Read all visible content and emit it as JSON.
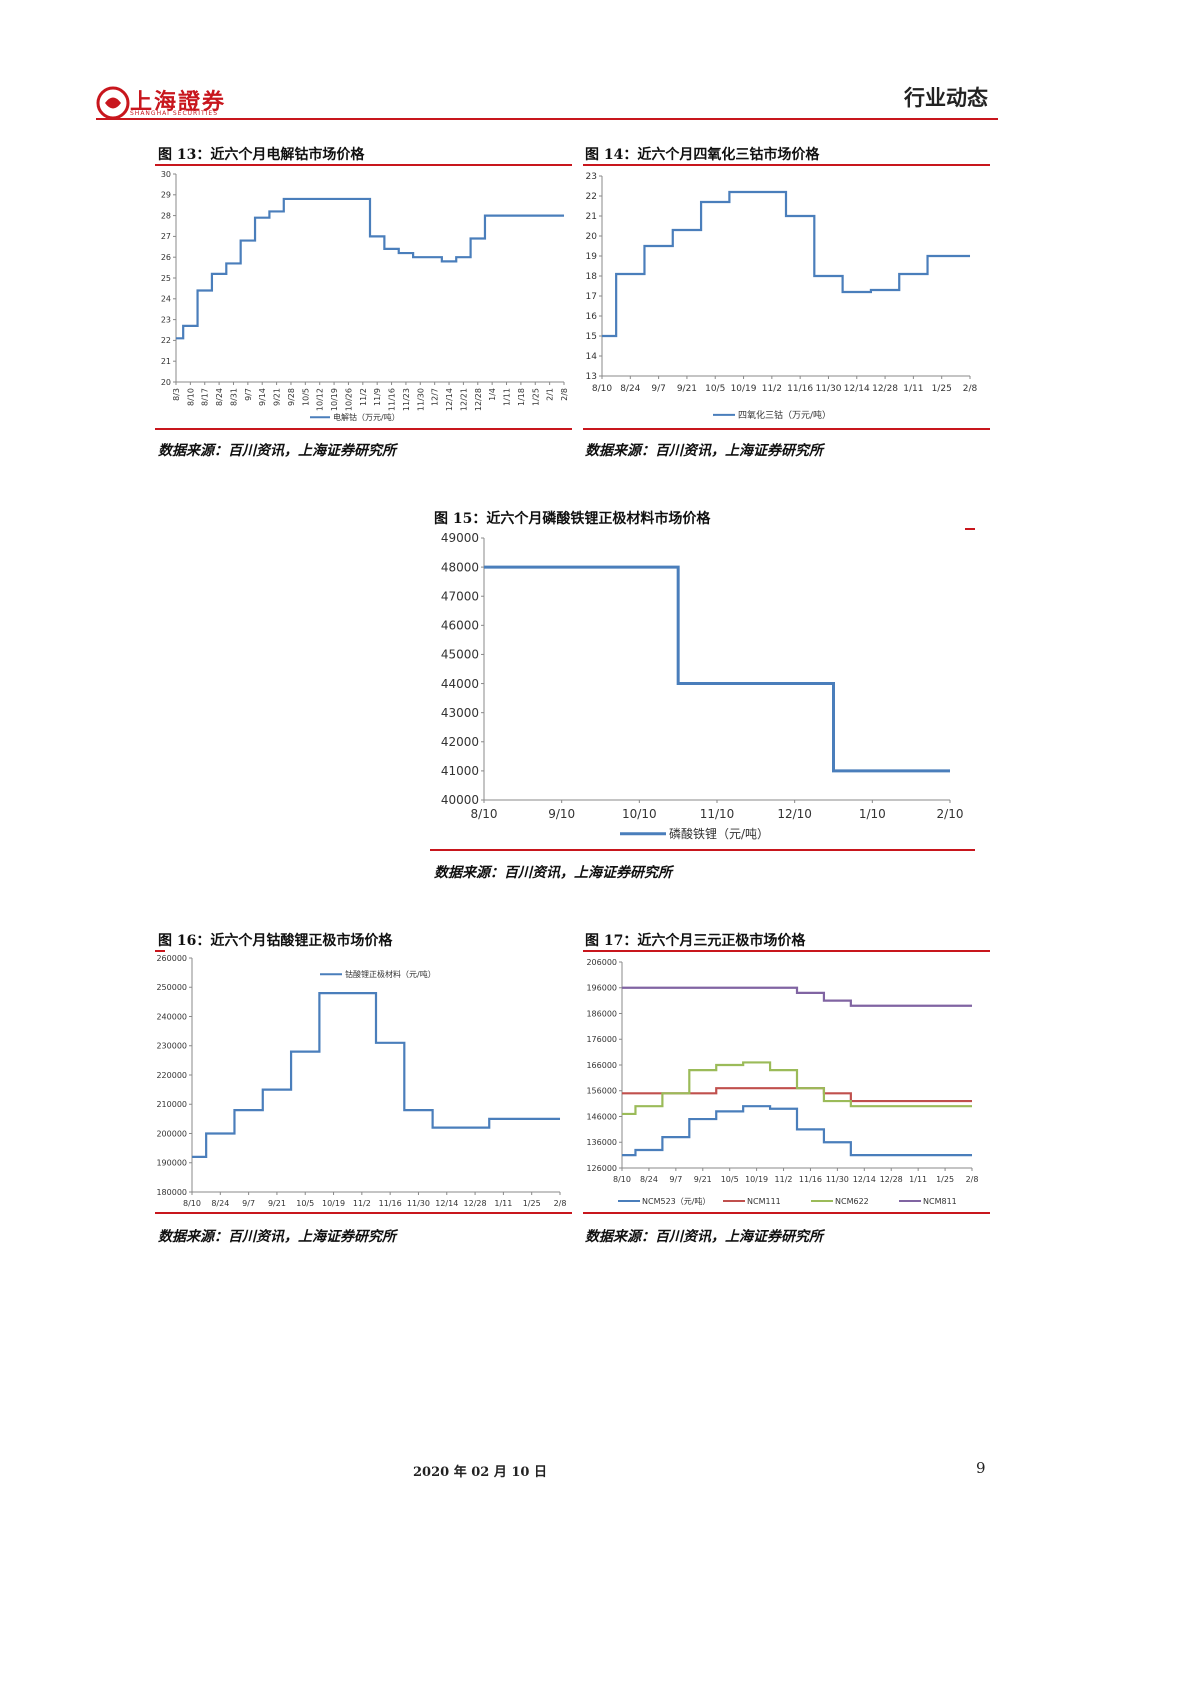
{
  "header": {
    "logo_text": "上海證券",
    "logo_sub": "SHANGHAI SECURITIES",
    "section": "行业动态"
  },
  "figures": [
    {
      "title": "图 13：近六个月电解钴市场价格",
      "source": "数据来源：百川资讯，上海证券研究所"
    },
    {
      "title": "图 14：近六个月四氧化三钴市场价格",
      "source": "数据来源：百川资讯，上海证券研究所"
    },
    {
      "title": "图 15：近六个月磷酸铁锂正极材料市场价格",
      "source": "数据来源：百川资讯，上海证券研究所"
    },
    {
      "title": "图 16：近六个月钴酸锂正极市场价格",
      "source": "数据来源：百川资讯，上海证券研究所"
    },
    {
      "title": "图 17：近六个月三元正极市场价格",
      "source": "数据来源：百川资讯，上海证券研究所"
    }
  ],
  "footer": {
    "date": "2020 年 02 月 10 日",
    "page": "9"
  },
  "chart_data": [
    {
      "id": "fig13",
      "type": "line",
      "x": [
        "8/3",
        "8/10",
        "8/17",
        "8/24",
        "8/31",
        "9/7",
        "9/14",
        "9/21",
        "9/28",
        "10/5",
        "10/12",
        "10/19",
        "10/26",
        "11/2",
        "11/9",
        "11/16",
        "11/23",
        "11/30",
        "12/7",
        "12/14",
        "12/21",
        "12/28",
        "1/4",
        "1/11",
        "1/18",
        "1/25",
        "2/1",
        "2/8"
      ],
      "ylim": [
        20,
        30
      ],
      "yticks": [
        20,
        21,
        22,
        23,
        24,
        25,
        26,
        27,
        28,
        29,
        30
      ],
      "series": [
        {
          "name": "电解钴（万元/吨）",
          "color": "#4a7ebb",
          "values": [
            22.1,
            22.7,
            24.4,
            25.2,
            25.7,
            26.8,
            27.9,
            28.2,
            28.8,
            28.8,
            28.8,
            28.8,
            28.8,
            28.8,
            27.0,
            26.4,
            26.2,
            26.0,
            26.0,
            25.8,
            26.0,
            26.9,
            28.0,
            28.0,
            28.0,
            28.0,
            28.0,
            28.0
          ]
        }
      ]
    },
    {
      "id": "fig14",
      "type": "line",
      "x": [
        "8/10",
        "8/24",
        "9/7",
        "9/21",
        "10/5",
        "10/19",
        "11/2",
        "11/16",
        "11/30",
        "12/14",
        "12/28",
        "1/11",
        "1/25",
        "2/8"
      ],
      "ylim": [
        13,
        23
      ],
      "yticks": [
        13,
        14,
        15,
        16,
        17,
        18,
        19,
        20,
        21,
        22,
        23
      ],
      "series": [
        {
          "name": "四氧化三钴（万元/吨）",
          "color": "#4a7ebb",
          "values": [
            15.0,
            18.1,
            19.5,
            20.3,
            21.7,
            22.2,
            22.2,
            21.0,
            18.0,
            17.2,
            17.3,
            18.1,
            19.0,
            19.0
          ]
        }
      ]
    },
    {
      "id": "fig15",
      "type": "line",
      "x": [
        "8/10",
        "9/10",
        "10/10",
        "11/10",
        "12/10",
        "1/10",
        "2/10"
      ],
      "ylim": [
        40000,
        49000
      ],
      "yticks": [
        40000,
        41000,
        42000,
        43000,
        44000,
        45000,
        46000,
        47000,
        48000,
        49000
      ],
      "series": [
        {
          "name": "磷酸铁锂（元/吨）",
          "color": "#4a7ebb",
          "values": [
            48000,
            48000,
            48000,
            44000,
            44000,
            41000,
            41000
          ]
        }
      ]
    },
    {
      "id": "fig16",
      "type": "line",
      "x": [
        "8/10",
        "8/24",
        "9/7",
        "9/21",
        "10/5",
        "10/19",
        "11/2",
        "11/16",
        "11/30",
        "12/14",
        "12/28",
        "1/11",
        "1/25",
        "2/8"
      ],
      "ylim": [
        180000,
        260000
      ],
      "yticks": [
        180000,
        190000,
        200000,
        210000,
        220000,
        230000,
        240000,
        250000,
        260000
      ],
      "series": [
        {
          "name": "钴酸锂正极材料（元/吨）",
          "color": "#4a7ebb",
          "values": [
            192000,
            200000,
            208000,
            215000,
            228000,
            248000,
            248000,
            231000,
            208000,
            202000,
            202000,
            205000,
            205000,
            205000
          ]
        }
      ]
    },
    {
      "id": "fig17",
      "type": "line",
      "x": [
        "8/10",
        "8/24",
        "9/7",
        "9/21",
        "10/5",
        "10/19",
        "11/2",
        "11/16",
        "11/30",
        "12/14",
        "12/28",
        "1/11",
        "1/25",
        "2/8"
      ],
      "ylim": [
        126000,
        206000
      ],
      "yticks": [
        126000,
        136000,
        146000,
        156000,
        166000,
        176000,
        186000,
        196000,
        206000
      ],
      "series": [
        {
          "name": "NCM523（元/吨）",
          "color": "#4a7ebb",
          "values": [
            131000,
            133000,
            138000,
            145000,
            148000,
            150000,
            149000,
            141000,
            136000,
            131000,
            131000,
            131000,
            131000,
            131000
          ]
        },
        {
          "name": "NCM111",
          "color": "#c0504d",
          "values": [
            155000,
            155000,
            155000,
            155000,
            157000,
            157000,
            157000,
            157000,
            155000,
            152000,
            152000,
            152000,
            152000,
            152000
          ]
        },
        {
          "name": "NCM622",
          "color": "#9bbb59",
          "values": [
            147000,
            150000,
            155000,
            164000,
            166000,
            167000,
            164000,
            157000,
            152000,
            150000,
            150000,
            150000,
            150000,
            150000
          ]
        },
        {
          "name": "NCM811",
          "color": "#8064a2",
          "values": [
            196000,
            196000,
            196000,
            196000,
            196000,
            196000,
            196000,
            194000,
            191000,
            189000,
            189000,
            189000,
            189000,
            189000
          ]
        }
      ]
    }
  ]
}
